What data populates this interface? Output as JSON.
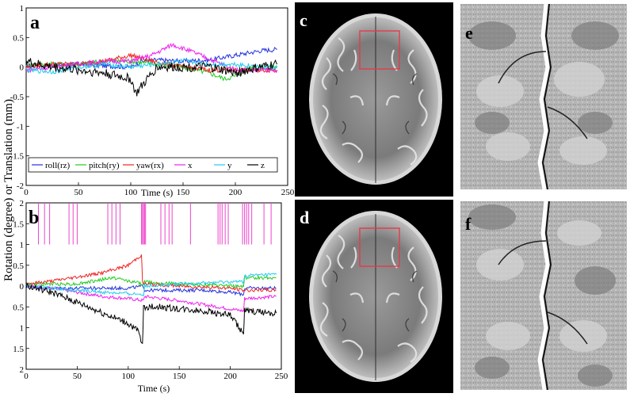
{
  "figure": {
    "ylabel_shared": "Rotation (degree) or Translation (mm)",
    "panel_labels": {
      "a": "a",
      "b": "b",
      "c": "c",
      "d": "d",
      "e": "e",
      "f": "f"
    }
  },
  "chart_data": [
    {
      "panel": "a",
      "type": "line",
      "xlabel": "Time (s)",
      "xlim": [
        0,
        250
      ],
      "ylim": [
        -2,
        1
      ],
      "xticks": [
        "0",
        "50",
        "100",
        "150",
        "200",
        "250"
      ],
      "yticks": [
        "1",
        "0.5",
        "0",
        "-0.5",
        "-1",
        "-1.5",
        "-2"
      ],
      "legend_position": "bottom",
      "series": [
        {
          "name": "roll(rz)",
          "color": "#2233dd",
          "x": [
            0,
            25,
            50,
            75,
            100,
            110,
            125,
            150,
            175,
            200,
            225,
            240
          ],
          "y": [
            0.02,
            0.03,
            0.05,
            0.02,
            0.0,
            0.1,
            0.12,
            0.1,
            0.12,
            0.2,
            0.28,
            0.3
          ]
        },
        {
          "name": "pitch(ry)",
          "color": "#22cc22",
          "x": [
            0,
            25,
            50,
            75,
            100,
            125,
            150,
            175,
            190,
            200,
            215,
            240
          ],
          "y": [
            0.05,
            0.05,
            0.05,
            0.1,
            0.1,
            0.05,
            0.0,
            -0.1,
            -0.2,
            -0.15,
            0.0,
            0.0
          ]
        },
        {
          "name": "yaw(rx)",
          "color": "#ee2222",
          "x": [
            0,
            25,
            50,
            75,
            100,
            120,
            150,
            175,
            200,
            225,
            240
          ],
          "y": [
            0.0,
            0.05,
            0.05,
            0.1,
            0.2,
            0.1,
            0.0,
            -0.05,
            -0.05,
            -0.05,
            -0.05
          ]
        },
        {
          "name": "x",
          "color": "#ee22ee",
          "x": [
            0,
            25,
            50,
            75,
            100,
            120,
            140,
            160,
            180,
            200,
            220,
            240
          ],
          "y": [
            -0.05,
            0.0,
            0.05,
            0.1,
            0.1,
            0.2,
            0.38,
            0.25,
            0.1,
            -0.05,
            -0.05,
            -0.05
          ]
        },
        {
          "name": "y",
          "color": "#22ccee",
          "x": [
            0,
            25,
            50,
            75,
            100,
            125,
            150,
            175,
            200,
            225,
            240
          ],
          "y": [
            -0.05,
            -0.08,
            0.0,
            0.05,
            0.0,
            0.05,
            0.1,
            0.05,
            0.05,
            0.0,
            0.0
          ]
        },
        {
          "name": "z",
          "color": "#000000",
          "x": [
            0,
            10,
            25,
            50,
            75,
            100,
            105,
            125,
            150,
            175,
            200,
            225,
            240
          ],
          "y": [
            0.1,
            0.05,
            0.0,
            -0.05,
            -0.1,
            -0.2,
            -0.45,
            0.0,
            0.0,
            0.0,
            -0.1,
            0.0,
            0.05
          ]
        }
      ]
    },
    {
      "panel": "b",
      "type": "line",
      "xlabel": "Time (s)",
      "xlim": [
        0,
        250
      ],
      "ylim_displayed": [
        2,
        -2
      ],
      "xticks": [
        "0",
        "50",
        "100",
        "150",
        "200",
        "250"
      ],
      "yticks": [
        "2",
        "1.5",
        "1",
        "0.5",
        "0",
        "0.5",
        "1",
        "1.5",
        "2"
      ],
      "event_markers": {
        "color": "#ee44cc",
        "from": 1,
        "to": 2,
        "x": [
          12,
          18,
          23,
          42,
          46,
          50,
          80,
          84,
          88,
          92,
          113,
          114,
          115,
          116,
          117,
          132,
          136,
          140,
          143,
          161,
          188,
          190,
          192,
          195,
          198,
          212,
          214,
          216,
          218,
          221,
          233,
          240
        ]
      },
      "series": [
        {
          "name": "roll(rz)",
          "color": "#2233dd",
          "x": [
            0,
            25,
            50,
            75,
            100,
            115,
            116,
            150,
            175,
            200,
            213,
            214,
            245
          ],
          "y": [
            0.0,
            -0.05,
            -0.05,
            -0.05,
            -0.05,
            0.0,
            -0.1,
            -0.1,
            -0.1,
            -0.15,
            -0.2,
            -0.05,
            -0.05
          ]
        },
        {
          "name": "pitch(ry)",
          "color": "#22cc22",
          "x": [
            0,
            25,
            50,
            85,
            115,
            116,
            150,
            200,
            213,
            214,
            245
          ],
          "y": [
            0.05,
            0.05,
            0.05,
            0.2,
            0.05,
            0.1,
            0.05,
            0.0,
            0.0,
            0.2,
            0.2
          ]
        },
        {
          "name": "yaw(rx)",
          "color": "#ee2222",
          "x": [
            0,
            25,
            50,
            75,
            100,
            113,
            114,
            116,
            150,
            200,
            213,
            214,
            245
          ],
          "y": [
            0.05,
            0.12,
            0.22,
            0.32,
            0.5,
            0.75,
            0.1,
            0.05,
            0.0,
            -0.05,
            -0.1,
            -0.1,
            -0.1
          ]
        },
        {
          "name": "x",
          "color": "#ee22ee",
          "x": [
            0,
            25,
            50,
            75,
            100,
            115,
            116,
            150,
            175,
            200,
            213,
            214,
            245
          ],
          "y": [
            0.0,
            -0.05,
            -0.15,
            -0.25,
            -0.3,
            -0.35,
            -0.25,
            -0.35,
            -0.45,
            -0.55,
            -0.6,
            -0.3,
            -0.25
          ]
        },
        {
          "name": "y",
          "color": "#22ccee",
          "x": [
            0,
            25,
            50,
            75,
            100,
            115,
            116,
            150,
            200,
            213,
            214,
            245
          ],
          "y": [
            0.0,
            -0.05,
            -0.1,
            -0.15,
            -0.18,
            -0.2,
            0.0,
            0.05,
            0.1,
            0.1,
            0.25,
            0.28
          ]
        },
        {
          "name": "z",
          "color": "#000000",
          "x": [
            0,
            25,
            50,
            75,
            100,
            110,
            114,
            115,
            130,
            150,
            175,
            200,
            213,
            214,
            245
          ],
          "y": [
            0.0,
            -0.15,
            -0.4,
            -0.65,
            -0.9,
            -1.1,
            -1.45,
            -0.5,
            -0.5,
            -0.55,
            -0.6,
            -0.7,
            -1.15,
            -0.6,
            -0.65
          ]
        }
      ]
    }
  ]
}
